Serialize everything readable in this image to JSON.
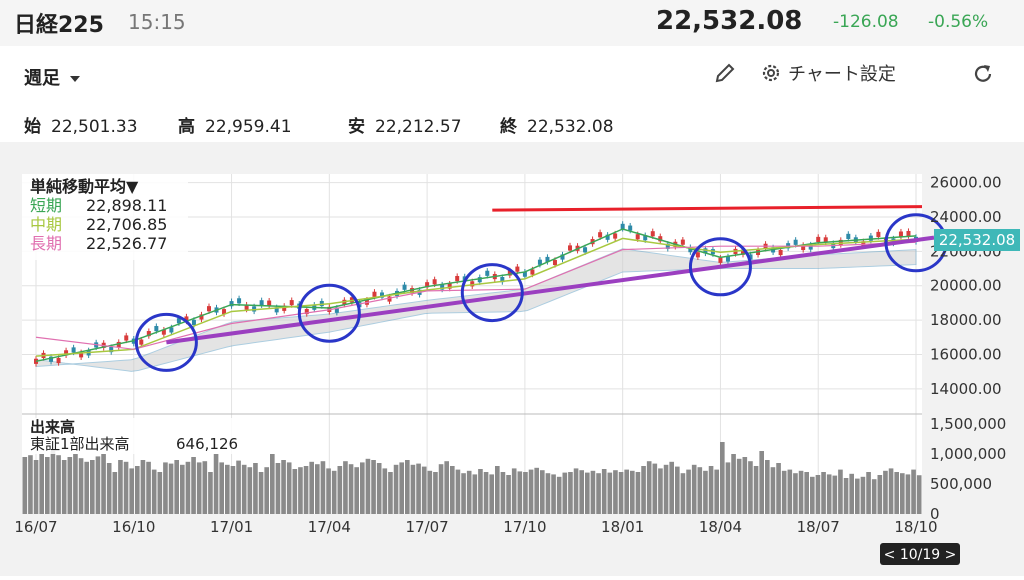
{
  "header": {
    "title": "日経225",
    "time": "15:15",
    "price": "22,532.08",
    "change": "-126.08",
    "change_pct": "-0.56%",
    "change_color": "#3aa655"
  },
  "toolbar": {
    "period": "週足",
    "settings_label": "チャート設定",
    "icons": [
      "pencil-icon",
      "gear-icon",
      "refresh-icon",
      "caret-down-icon"
    ]
  },
  "ohlc": {
    "open_label": "始",
    "open": "22,501.33",
    "high_label": "高",
    "high": "22,959.41",
    "low_label": "安",
    "low": "22,212.57",
    "close_label": "終",
    "close": "22,532.08"
  },
  "legend": {
    "title": "単純移動平均▼",
    "items": [
      {
        "label": "短期",
        "value": "22,898.11",
        "color": "#3aa655"
      },
      {
        "label": "中期",
        "value": "22,706.85",
        "color": "#a8c840"
      },
      {
        "label": "長期",
        "value": "22,526.77",
        "color": "#e070b0"
      }
    ]
  },
  "volume_legend": {
    "title": "出来高",
    "label": "東証1部出来高",
    "value": "646,126"
  },
  "price_tag": "22,532.08",
  "date_tag": "< 10/19 >",
  "chart_data": [
    {
      "type": "line",
      "chart": "price",
      "x": [
        "16/07",
        "16/10",
        "17/01",
        "17/04",
        "17/07",
        "17/10",
        "18/01",
        "18/04",
        "18/07",
        "18/10"
      ],
      "y_ticks": [
        14000,
        16000,
        18000,
        20000,
        22000,
        24000,
        26000
      ],
      "y_tick_labels": [
        "14000.00",
        "16000.00",
        "18000.00",
        "20000.00",
        "22000.00",
        "24000.00",
        "26000.00"
      ],
      "ylim": [
        13000,
        26500
      ],
      "series": [
        {
          "name": "短期",
          "color": "#3aa655",
          "values": [
            15600,
            16800,
            18900,
            18700,
            19950,
            20800,
            23300,
            21650,
            22500,
            22900
          ]
        },
        {
          "name": "中期",
          "color": "#a8c840",
          "values": [
            15900,
            16300,
            18500,
            18950,
            19750,
            20400,
            22750,
            21950,
            22400,
            22700
          ]
        },
        {
          "name": "長期",
          "color": "#e070b0",
          "values": [
            17000,
            16300,
            17800,
            18600,
            19700,
            19800,
            22100,
            22300,
            22300,
            22530
          ]
        }
      ],
      "annotations": {
        "resistance_line": {
          "color": "#e8202a",
          "from": {
            "x": "17/09",
            "y": 24400
          },
          "to": {
            "x": "18/10",
            "y": 24600
          }
        },
        "support_line": {
          "color": "#9b3fc0",
          "from": {
            "x": "16/11",
            "y": 16700
          },
          "to": {
            "x": "18/10",
            "y": 22500
          }
        },
        "circles": [
          {
            "x": "16/11",
            "y": 16700
          },
          {
            "x": "17/04",
            "y": 18400
          },
          {
            "x": "17/09",
            "y": 19600
          },
          {
            "x": "18/04",
            "y": 21100
          },
          {
            "x": "18/10",
            "y": 22500
          }
        ]
      }
    },
    {
      "type": "bar",
      "chart": "volume",
      "title": "出来高",
      "y_ticks": [
        0,
        500000,
        1000000,
        1500000
      ],
      "y_tick_labels": [
        "0",
        "500,000",
        "1,000,000",
        "1,500,000"
      ],
      "ylim": [
        0,
        1600000
      ],
      "values": [
        950000,
        980000,
        900000,
        1000000,
        950000,
        1050000,
        980000,
        900000,
        950000,
        1000000,
        930000,
        870000,
        900000,
        960000,
        1000000,
        850000,
        700000,
        900000,
        870000,
        760000,
        800000,
        900000,
        870000,
        740000,
        700000,
        860000,
        840000,
        900000,
        820000,
        870000,
        950000,
        860000,
        880000,
        700000,
        1000000,
        860000,
        820000,
        800000,
        890000,
        820000,
        780000,
        850000,
        700000,
        780000,
        1000000,
        850000,
        900000,
        860000,
        750000,
        780000,
        800000,
        870000,
        830000,
        880000,
        760000,
        720000,
        800000,
        880000,
        830000,
        780000,
        860000,
        920000,
        900000,
        850000,
        760000,
        700000,
        820000,
        860000,
        900000,
        820000,
        840000,
        790000,
        720000,
        700000,
        830000,
        880000,
        800000,
        740000,
        680000,
        720000,
        660000,
        750000,
        700000,
        660000,
        800000,
        700000,
        650000,
        760000,
        710000,
        700000,
        740000,
        770000,
        730000,
        680000,
        660000,
        620000,
        690000,
        700000,
        760000,
        730000,
        690000,
        720000,
        680000,
        750000,
        690000,
        730000,
        700000,
        740000,
        720000,
        700000,
        800000,
        880000,
        840000,
        760000,
        820000,
        870000,
        790000,
        680000,
        740000,
        820000,
        780000,
        720000,
        800000,
        740000,
        1200000,
        860000,
        1000000,
        920000,
        950000,
        880000,
        800000,
        1050000,
        900000,
        780000,
        850000,
        720000,
        740000,
        680000,
        720000,
        700000,
        620000,
        650000,
        700000,
        660000,
        640000,
        740000,
        600000,
        670000,
        590000,
        620000,
        700000,
        580000,
        650000,
        720000,
        760000,
        700000,
        680000,
        660000,
        740000,
        646126
      ]
    }
  ]
}
